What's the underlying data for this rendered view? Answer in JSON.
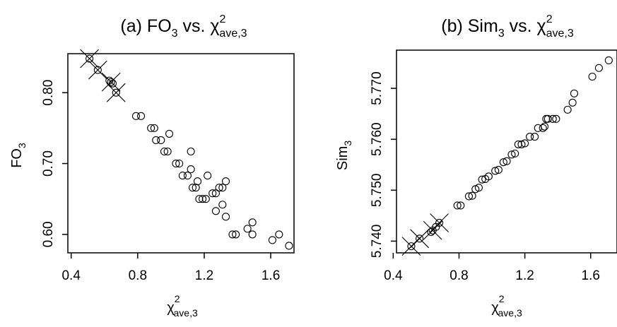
{
  "chart_data": [
    {
      "type": "scatter",
      "title": "(a) FO3 vs. χ²ave,3",
      "title_parts": {
        "prefix": "(a) FO",
        "prefix_sub": "3",
        "mid": " vs. χ",
        "sup": "2",
        "sub": "ave,3"
      },
      "xlabel": "χ²ave,3",
      "xlabel_parts": {
        "base": "χ",
        "sup": "2",
        "sub": "ave,3"
      },
      "ylabel": "FO3",
      "ylabel_parts": {
        "base": "FO",
        "sub": "3"
      },
      "xlim": [
        0.38,
        1.74
      ],
      "ylim": [
        0.574,
        0.855
      ],
      "xticks": [
        0.4,
        0.8,
        1.2,
        1.6
      ],
      "xtick_labels": [
        "0.4",
        "0.8",
        "1.2",
        "1.6"
      ],
      "yticks": [
        0.6,
        0.7,
        0.8
      ],
      "ytick_labels": [
        "0.60",
        "0.70",
        "0.80"
      ],
      "grid": false,
      "points": [
        [
          0.51,
          0.848
        ],
        [
          0.56,
          0.832
        ],
        [
          0.63,
          0.817
        ],
        [
          0.64,
          0.815
        ],
        [
          0.65,
          0.813
        ],
        [
          0.67,
          0.8
        ],
        [
          0.79,
          0.767
        ],
        [
          0.82,
          0.767
        ],
        [
          0.88,
          0.75
        ],
        [
          0.9,
          0.75
        ],
        [
          0.91,
          0.733
        ],
        [
          0.94,
          0.733
        ],
        [
          0.96,
          0.717
        ],
        [
          0.98,
          0.717
        ],
        [
          0.99,
          0.742
        ],
        [
          1.03,
          0.7
        ],
        [
          1.05,
          0.7
        ],
        [
          1.07,
          0.683
        ],
        [
          1.1,
          0.683
        ],
        [
          1.12,
          0.692
        ],
        [
          1.12,
          0.717
        ],
        [
          1.13,
          0.666
        ],
        [
          1.15,
          0.666
        ],
        [
          1.16,
          0.675
        ],
        [
          1.17,
          0.65
        ],
        [
          1.19,
          0.65
        ],
        [
          1.21,
          0.65
        ],
        [
          1.22,
          0.683
        ],
        [
          1.25,
          0.658
        ],
        [
          1.27,
          0.658
        ],
        [
          1.27,
          0.633
        ],
        [
          1.29,
          0.666
        ],
        [
          1.31,
          0.666
        ],
        [
          1.31,
          0.642
        ],
        [
          1.33,
          0.625
        ],
        [
          1.33,
          0.675
        ],
        [
          1.37,
          0.6
        ],
        [
          1.39,
          0.6
        ],
        [
          1.46,
          0.608
        ],
        [
          1.49,
          0.6
        ],
        [
          1.49,
          0.617
        ],
        [
          1.61,
          0.592
        ],
        [
          1.65,
          0.6
        ],
        [
          1.71,
          0.584
        ]
      ],
      "crosses": [
        [
          0.51,
          0.848
        ],
        [
          0.56,
          0.832
        ],
        [
          0.64,
          0.815
        ],
        [
          0.67,
          0.8
        ]
      ]
    },
    {
      "type": "scatter",
      "title": "(b) Sim3 vs. χ²ave,3",
      "title_parts": {
        "prefix": "(b) Sim",
        "prefix_sub": "3",
        "mid": " vs. χ",
        "sup": "2",
        "sub": "ave,3"
      },
      "xlabel": "χ²ave,3",
      "xlabel_parts": {
        "base": "χ",
        "sup": "2",
        "sub": "ave,3"
      },
      "ylabel": "Sim3",
      "ylabel_parts": {
        "base": "Sim",
        "sub": "3"
      },
      "xlim": [
        0.42,
        1.76
      ],
      "ylim": [
        5.7377,
        5.7775
      ],
      "xticks": [
        0.4,
        0.8,
        1.2,
        1.6
      ],
      "xtick_labels": [
        "0.4",
        "0.8",
        "1.2",
        "1.6"
      ],
      "yticks": [
        5.74,
        5.75,
        5.76,
        5.77
      ],
      "ytick_labels": [
        "5.740",
        "5.750",
        "5.760",
        "5.770"
      ],
      "grid": false,
      "points": [
        [
          0.51,
          5.739
        ],
        [
          0.56,
          5.7405
        ],
        [
          0.63,
          5.7418
        ],
        [
          0.64,
          5.7421
        ],
        [
          0.66,
          5.7428
        ],
        [
          0.68,
          5.7436
        ],
        [
          0.79,
          5.747
        ],
        [
          0.81,
          5.747
        ],
        [
          0.86,
          5.7488
        ],
        [
          0.88,
          5.7489
        ],
        [
          0.9,
          5.7502
        ],
        [
          0.92,
          5.7505
        ],
        [
          0.94,
          5.7521
        ],
        [
          0.96,
          5.7522
        ],
        [
          0.98,
          5.7527
        ],
        [
          1.02,
          5.7538
        ],
        [
          1.04,
          5.754
        ],
        [
          1.07,
          5.7555
        ],
        [
          1.09,
          5.7557
        ],
        [
          1.12,
          5.757
        ],
        [
          1.14,
          5.7572
        ],
        [
          1.16,
          5.759
        ],
        [
          1.18,
          5.759
        ],
        [
          1.2,
          5.7592
        ],
        [
          1.23,
          5.7605
        ],
        [
          1.26,
          5.7605
        ],
        [
          1.28,
          5.7622
        ],
        [
          1.31,
          5.7622
        ],
        [
          1.32,
          5.7625
        ],
        [
          1.33,
          5.764
        ],
        [
          1.34,
          5.764
        ],
        [
          1.37,
          5.764
        ],
        [
          1.39,
          5.764
        ],
        [
          1.46,
          5.7658
        ],
        [
          1.49,
          5.7672
        ],
        [
          1.5,
          5.769
        ],
        [
          1.61,
          5.7723
        ],
        [
          1.65,
          5.774
        ],
        [
          1.71,
          5.7755
        ]
      ],
      "crosses": [
        [
          0.51,
          5.739
        ],
        [
          0.56,
          5.7405
        ],
        [
          0.64,
          5.7421
        ],
        [
          0.68,
          5.7436
        ]
      ]
    }
  ]
}
